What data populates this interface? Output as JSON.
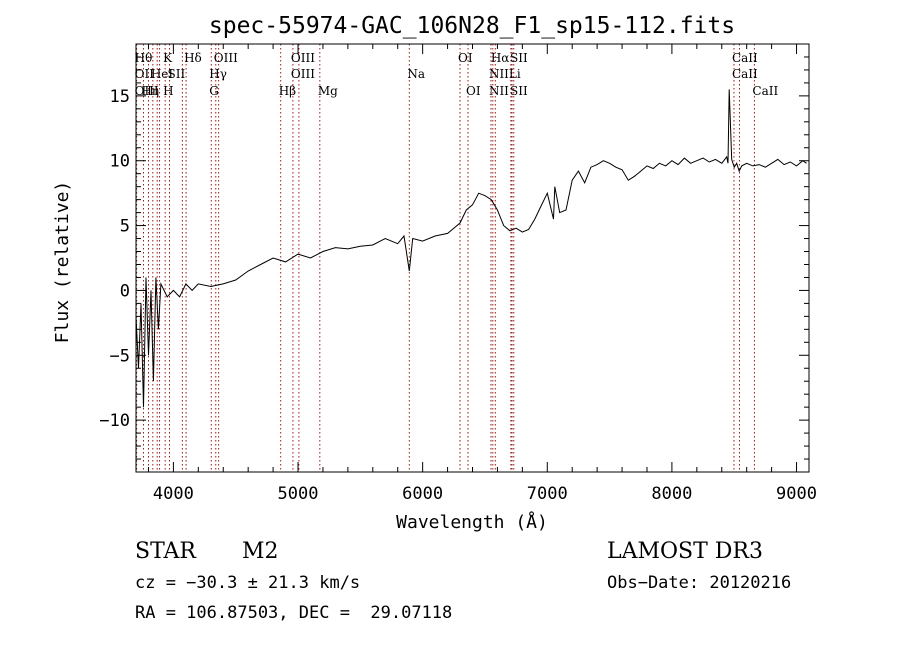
{
  "chart_data": {
    "type": "line",
    "title": "spec-55974-GAC_106N28_F1_sp15-112.fits",
    "xlabel": "Wavelength (Å)",
    "ylabel": "Flux (relative)",
    "xlim": [
      3700,
      9100
    ],
    "ylim": [
      -14,
      19
    ],
    "xticks": [
      4000,
      5000,
      6000,
      7000,
      8000,
      9000
    ],
    "yticks": [
      -10,
      -5,
      0,
      5,
      10,
      15
    ],
    "x_minor_step": 200,
    "y_minor_step": 1,
    "grid": false,
    "series": [
      {
        "name": "spectrum",
        "x": [
          3700,
          3720,
          3740,
          3760,
          3780,
          3800,
          3820,
          3840,
          3860,
          3880,
          3900,
          3950,
          4000,
          4050,
          4100,
          4150,
          4200,
          4300,
          4400,
          4500,
          4600,
          4700,
          4800,
          4900,
          5000,
          5100,
          5200,
          5300,
          5400,
          5500,
          5600,
          5700,
          5800,
          5850,
          5893,
          5920,
          6000,
          6100,
          6200,
          6250,
          6300,
          6350,
          6400,
          6450,
          6500,
          6550,
          6600,
          6650,
          6700,
          6750,
          6800,
          6850,
          6900,
          6950,
          7000,
          7050,
          7060,
          7100,
          7150,
          7200,
          7250,
          7300,
          7350,
          7400,
          7450,
          7500,
          7550,
          7600,
          7650,
          7700,
          7750,
          7800,
          7850,
          7900,
          7950,
          8000,
          8050,
          8100,
          8150,
          8200,
          8250,
          8300,
          8350,
          8400,
          8440,
          8450,
          8460,
          8480,
          8500,
          8520,
          8540,
          8560,
          8600,
          8650,
          8700,
          8750,
          8800,
          8850,
          8900,
          8950,
          9000,
          9050,
          9080
        ],
        "y": [
          -2,
          -6,
          -1,
          -9,
          1,
          -5,
          0,
          -7,
          1,
          -3,
          0.5,
          -0.5,
          0,
          -0.5,
          0.5,
          0,
          0.5,
          0.3,
          0.5,
          0.8,
          1.5,
          2,
          2.5,
          2.2,
          2.8,
          2.5,
          3,
          3.3,
          3.2,
          3.4,
          3.5,
          4,
          3.6,
          4.2,
          1.5,
          4,
          3.8,
          4.2,
          4.4,
          4.8,
          5.2,
          6.2,
          6.6,
          7.5,
          7.3,
          7,
          6.2,
          5,
          4.6,
          4.8,
          4.5,
          4.7,
          5.5,
          6.5,
          7.5,
          5.5,
          8,
          6,
          6.2,
          8.5,
          9.2,
          8.3,
          9.5,
          9.7,
          10,
          9.8,
          9.5,
          9.3,
          8.5,
          8.8,
          9.2,
          9.6,
          9.4,
          9.8,
          9.6,
          10,
          9.7,
          10.2,
          9.8,
          10,
          10.2,
          9.9,
          10.1,
          9.8,
          10.3,
          9.8,
          15.5,
          10.1,
          9.5,
          9.8,
          9.2,
          9.6,
          9.8,
          9.6,
          9.7,
          9.5,
          9.8,
          10.1,
          9.7,
          9.9,
          9.6,
          10,
          9.8
        ]
      }
    ],
    "lines": [
      {
        "x": 3705,
        "l1": "Hθ",
        "l2": "OII",
        "l3": "OIII"
      },
      {
        "x": 3760,
        "l1": "",
        "l2": "",
        "l3": "Hη"
      },
      {
        "x": 3800,
        "l1": "",
        "l2": "",
        "l3": ""
      },
      {
        "x": 3835,
        "l1": "",
        "l2": "HeI",
        "l3": ""
      },
      {
        "x": 3870,
        "l1": "",
        "l2": "",
        "l3": ""
      },
      {
        "x": 3889,
        "l1": "",
        "l2": "",
        "l3": ""
      },
      {
        "x": 3934,
        "l1": "K",
        "l2": "",
        "l3": "H"
      },
      {
        "x": 3969,
        "l1": "",
        "l2": "SII",
        "l3": ""
      },
      {
        "x": 4072,
        "l1": "",
        "l2": "",
        "l3": ""
      },
      {
        "x": 4102,
        "l1": "Hδ",
        "l2": "",
        "l3": ""
      },
      {
        "x": 4304,
        "l1": "",
        "l2": "Hγ",
        "l3": "G"
      },
      {
        "x": 4340,
        "l1": "OIII",
        "l2": "",
        "l3": ""
      },
      {
        "x": 4363,
        "l1": "",
        "l2": "",
        "l3": ""
      },
      {
        "x": 4861,
        "l1": "",
        "l2": "",
        "l3": "Hβ"
      },
      {
        "x": 4959,
        "l1": "OIII",
        "l2": "OIII",
        "l3": ""
      },
      {
        "x": 5007,
        "l1": "",
        "l2": "",
        "l3": ""
      },
      {
        "x": 5175,
        "l1": "",
        "l2": "",
        "l3": "Mg"
      },
      {
        "x": 5893,
        "l1": "",
        "l2": "Na",
        "l3": ""
      },
      {
        "x": 6300,
        "l1": "OI",
        "l2": "",
        "l3": ""
      },
      {
        "x": 6364,
        "l1": "",
        "l2": "",
        "l3": "OI"
      },
      {
        "x": 6548,
        "l1": "",
        "l2": "NII",
        "l3": "NII"
      },
      {
        "x": 6563,
        "l1": "Hα",
        "l2": "",
        "l3": ""
      },
      {
        "x": 6583,
        "l1": "",
        "l2": "",
        "l3": ""
      },
      {
        "x": 6708,
        "l1": "",
        "l2": "Li",
        "l3": ""
      },
      {
        "x": 6717,
        "l1": "SII",
        "l2": "",
        "l3": "SII"
      },
      {
        "x": 6731,
        "l1": "",
        "l2": "",
        "l3": ""
      },
      {
        "x": 8498,
        "l1": "CaII",
        "l2": "CaII",
        "l3": ""
      },
      {
        "x": 8542,
        "l1": "",
        "l2": "",
        "l3": ""
      },
      {
        "x": 8662,
        "l1": "",
        "l2": "",
        "l3": "CaII"
      }
    ]
  },
  "info": {
    "object_class": "STAR",
    "subclass": "M2",
    "survey": "LAMOST DR3",
    "cz": "cz = −30.3 ± 21.3 km/s",
    "obs_date": "Obs−Date: 20120216",
    "coords": "RA = 106.87503, DEC =  29.07118"
  },
  "colors": {
    "line_marker": "#a01818",
    "spectrum": "#000000"
  }
}
